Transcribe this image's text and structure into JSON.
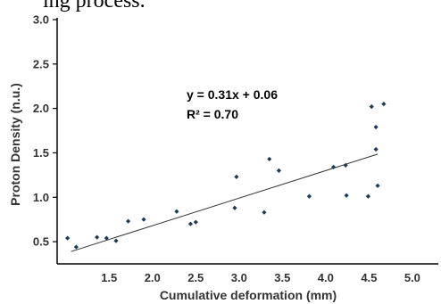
{
  "page_fragment": "ing process.",
  "chart_data": {
    "type": "scatter",
    "xlabel": "Cumulative deformation (mm)",
    "ylabel": "Proton Density (n.u.)",
    "xlim": [
      0.9,
      5.3
    ],
    "ylim": [
      0.25,
      3.0
    ],
    "x_ticks": [
      "1.5",
      "2.0",
      "2.5",
      "3.0",
      "3.5",
      "4.0",
      "4.5",
      "5.0"
    ],
    "y_ticks": [
      "0.5",
      "1.0",
      "1.5",
      "2.0",
      "2.5",
      "3.0"
    ],
    "grid": false,
    "marker_color": "#1f3b57",
    "points": [
      {
        "x": 1.02,
        "y": 0.54
      },
      {
        "x": 1.12,
        "y": 0.44
      },
      {
        "x": 1.36,
        "y": 0.55
      },
      {
        "x": 1.47,
        "y": 0.54
      },
      {
        "x": 1.58,
        "y": 0.51
      },
      {
        "x": 1.72,
        "y": 0.73
      },
      {
        "x": 1.9,
        "y": 0.75
      },
      {
        "x": 2.28,
        "y": 0.84
      },
      {
        "x": 2.44,
        "y": 0.7
      },
      {
        "x": 2.5,
        "y": 0.72
      },
      {
        "x": 2.95,
        "y": 0.88
      },
      {
        "x": 2.97,
        "y": 1.23
      },
      {
        "x": 3.29,
        "y": 0.83
      },
      {
        "x": 3.35,
        "y": 1.43
      },
      {
        "x": 3.46,
        "y": 1.3
      },
      {
        "x": 3.81,
        "y": 1.01
      },
      {
        "x": 4.09,
        "y": 1.34
      },
      {
        "x": 4.23,
        "y": 1.36
      },
      {
        "x": 4.24,
        "y": 1.02
      },
      {
        "x": 4.49,
        "y": 1.01
      },
      {
        "x": 4.53,
        "y": 2.02
      },
      {
        "x": 4.58,
        "y": 1.79
      },
      {
        "x": 4.58,
        "y": 1.54
      },
      {
        "x": 4.6,
        "y": 1.13
      },
      {
        "x": 4.67,
        "y": 2.05
      }
    ],
    "trendline": {
      "slope": 0.31,
      "intercept": 0.06,
      "x_range": [
        1.06,
        4.6
      ],
      "color": "#333333"
    },
    "annotations": {
      "equation": "y = 0.31x + 0.06",
      "r_squared": "R² = 0.70"
    }
  }
}
